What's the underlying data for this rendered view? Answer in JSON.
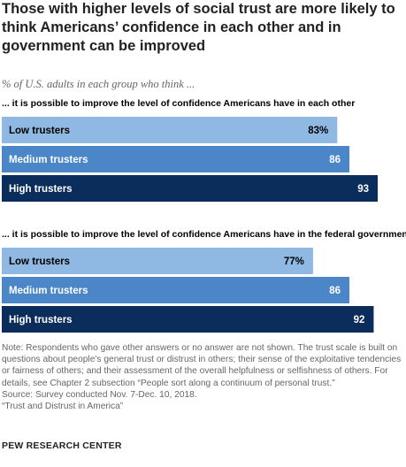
{
  "title": "Those with higher levels of social trust are more likely to think Americans’ confidence in each other and in government can be improved",
  "subtitle": "% of U.S. adults in each group who think ...",
  "colors": {
    "low": "#8fb9e3",
    "medium": "#4a86c8",
    "high": "#0b2d5c",
    "text_dark": "#000000",
    "text_light": "#ffffff"
  },
  "chart_data": [
    {
      "type": "bar",
      "orientation": "horizontal",
      "title": "... it is possible to improve the level of confidence Americans have in each other",
      "categories": [
        "Low trusters",
        "Medium trusters",
        "High trusters"
      ],
      "values": [
        83,
        86,
        93
      ],
      "value_labels": [
        "83%",
        "86",
        "93"
      ],
      "xlim": [
        0,
        100
      ]
    },
    {
      "type": "bar",
      "orientation": "horizontal",
      "title": "... it is possible to improve the level of confidence Americans have in the federal government",
      "categories": [
        "Low trusters",
        "Medium trusters",
        "High trusters"
      ],
      "values": [
        77,
        86,
        92
      ],
      "value_labels": [
        "77%",
        "86",
        "92"
      ],
      "xlim": [
        0,
        100
      ]
    }
  ],
  "note": {
    "line1": "Note: Respondents who gave other answers or no answer are not shown. The trust scale is built on questions about people’s general trust or distrust in others; their sense of the exploitative tendencies or fairness of others; and their assessment of the overall helpfulness or selfishness of others. For details, see Chapter 2 subsection “People sort along a continuum of personal trust.”",
    "source": "Source: Survey conducted Nov. 7-Dec. 10, 2018.",
    "report": "“Trust and Distrust in America”"
  },
  "footer": "PEW RESEARCH CENTER"
}
